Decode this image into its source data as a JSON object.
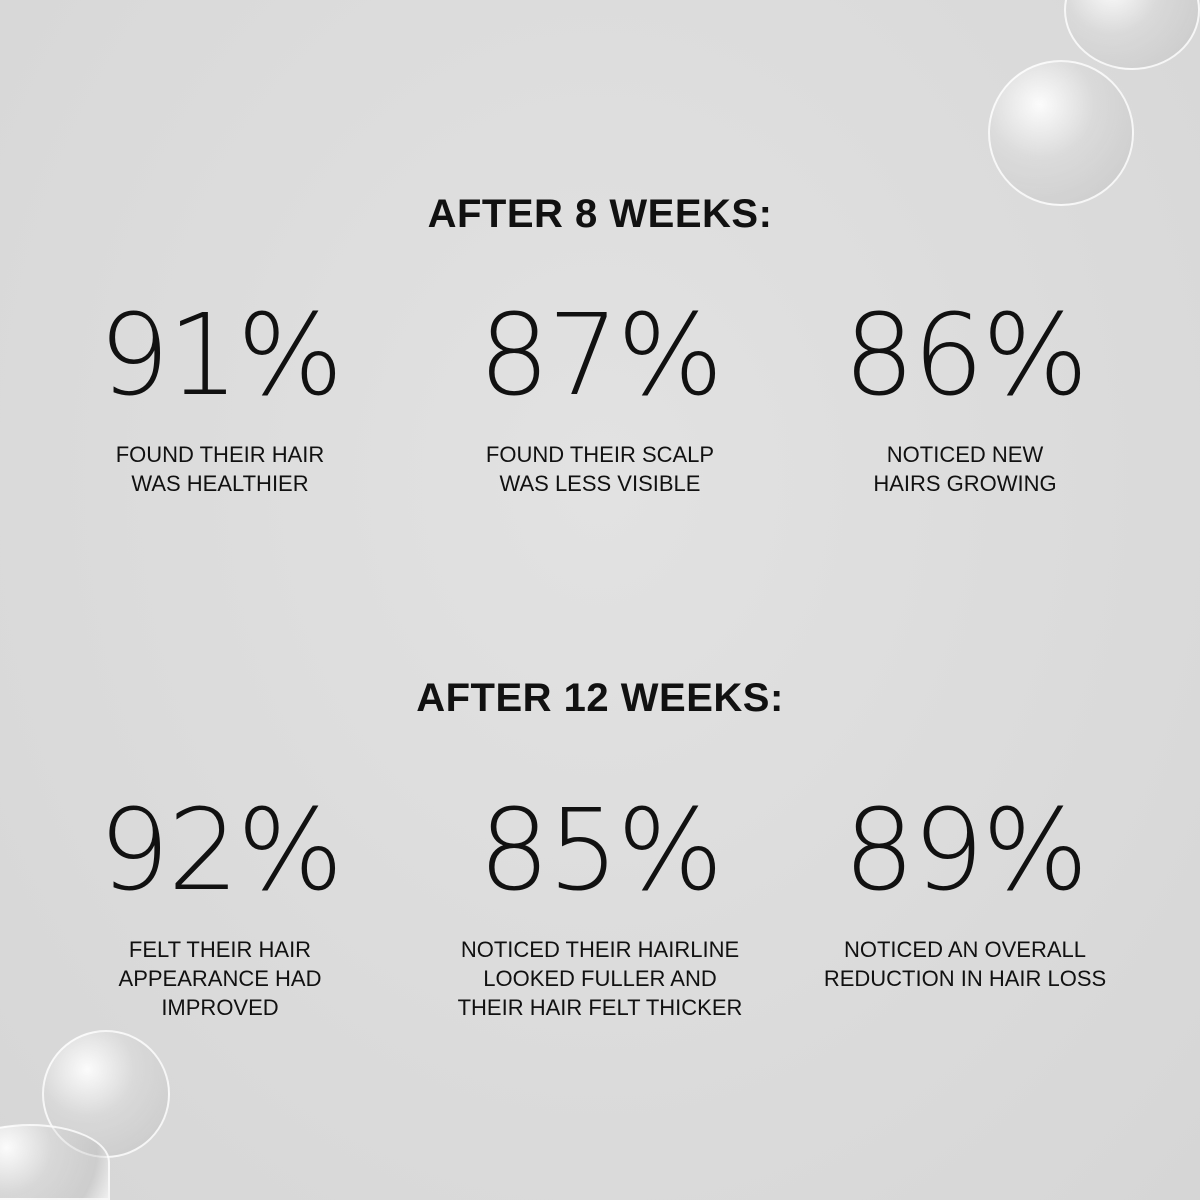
{
  "sections": [
    {
      "heading": "AFTER 8 WEEKS:",
      "stats": [
        {
          "value": "91%",
          "caption": [
            "FOUND THEIR HAIR",
            "WAS HEALTHIER"
          ]
        },
        {
          "value": "87%",
          "caption": [
            "FOUND THEIR SCALP",
            "WAS LESS VISIBLE"
          ]
        },
        {
          "value": "86%",
          "caption": [
            "NOTICED NEW",
            "HAIRS GROWING"
          ]
        }
      ]
    },
    {
      "heading": "AFTER 12 WEEKS:",
      "stats": [
        {
          "value": "92%",
          "caption": [
            "FELT THEIR HAIR",
            "APPEARANCE HAD",
            "IMPROVED"
          ]
        },
        {
          "value": "85%",
          "caption": [
            "NOTICED THEIR HAIRLINE",
            "LOOKED FULLER AND",
            "THEIR HAIR FELT THICKER"
          ]
        },
        {
          "value": "89%",
          "caption": [
            "NOTICED AN OVERALL",
            "REDUCTION IN HAIR LOSS"
          ]
        }
      ]
    }
  ]
}
